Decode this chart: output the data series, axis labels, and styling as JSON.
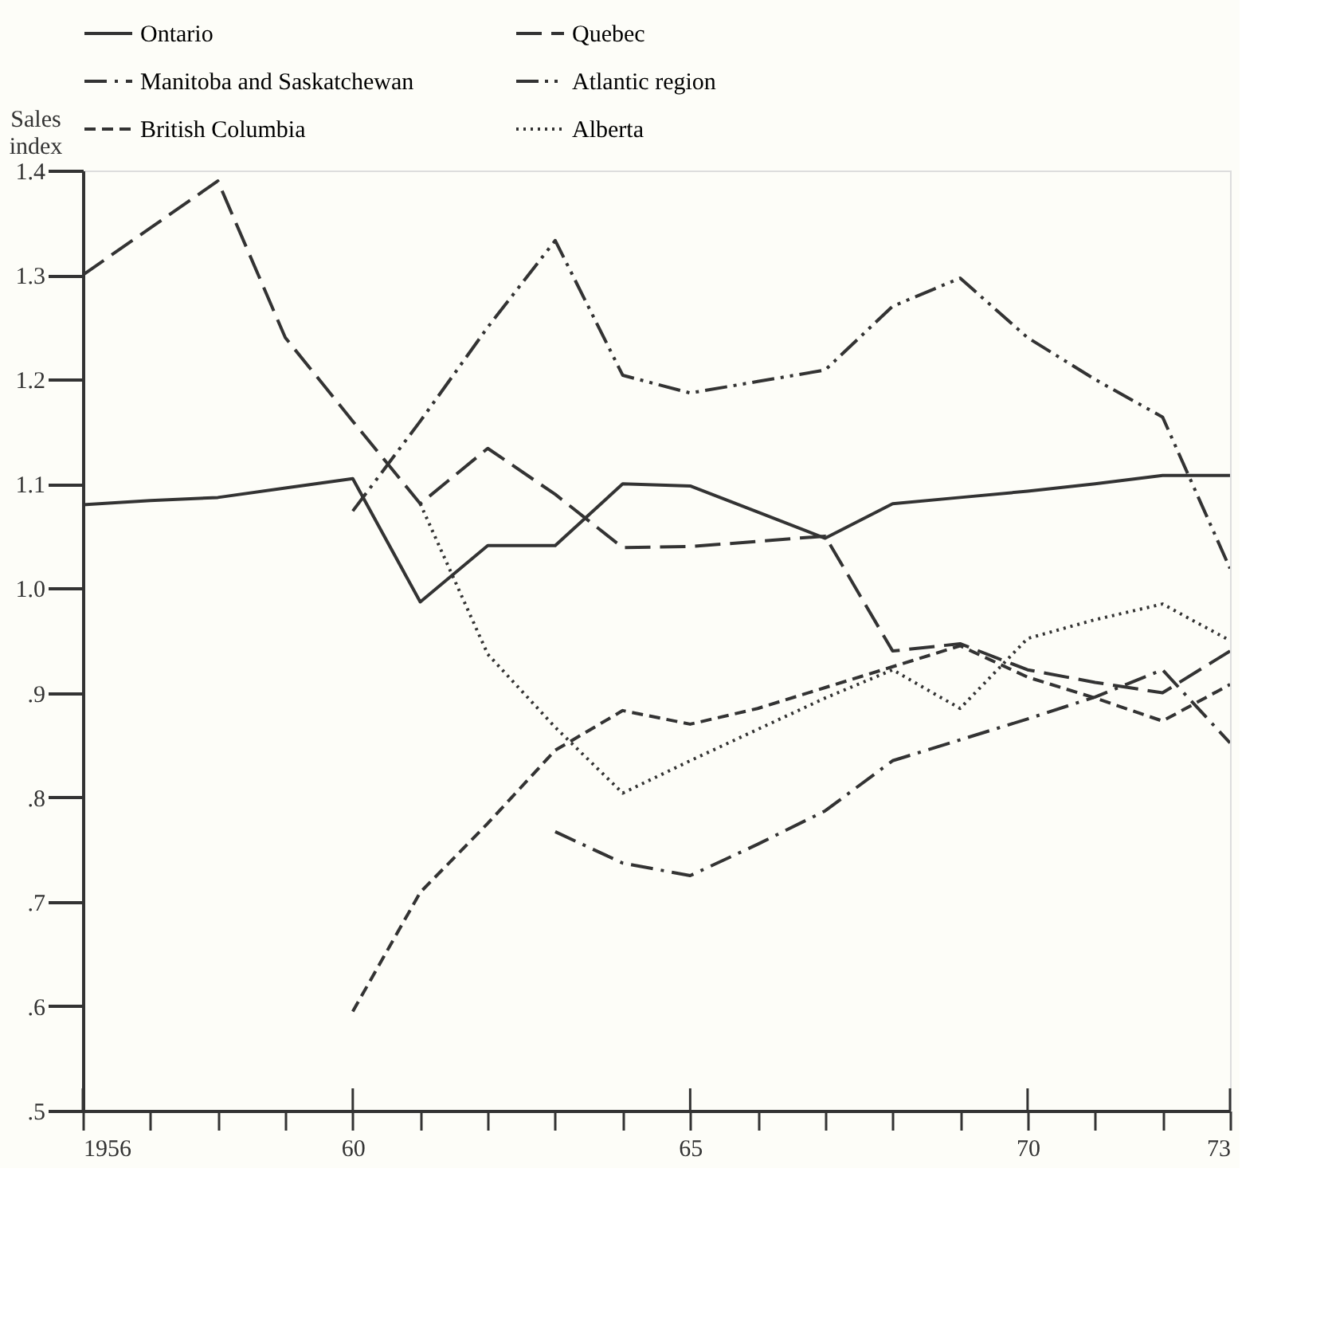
{
  "chart_data": {
    "type": "line",
    "ylabel": "Sales index",
    "x": [
      1956,
      1957,
      1958,
      1959,
      1960,
      1961,
      1962,
      1963,
      1964,
      1965,
      1966,
      1967,
      1968,
      1969,
      1970,
      1971,
      1972,
      1973
    ],
    "series": [
      {
        "name": "Ontario",
        "color": "#333333",
        "line_style": "solid",
        "values": [
          1.08,
          1.084,
          1.087,
          1.096,
          1.105,
          0.987,
          1.041,
          1.041,
          1.1,
          1.098,
          1.073,
          1.048,
          1.081,
          1.087,
          1.093,
          1.1,
          1.108,
          1.108
        ]
      },
      {
        "name": "Quebec",
        "color": "#333333",
        "line_style": "longdash",
        "values": [
          1.3,
          1.345,
          1.39,
          1.24,
          1.16,
          1.081,
          1.134,
          1.09,
          1.039,
          1.04,
          1.045,
          1.05,
          0.94,
          0.947,
          0.922,
          0.91,
          0.9,
          0.94
        ]
      },
      {
        "name": "Manitoba and Saskatchewan",
        "color": "#333333",
        "line_style": "dashdot",
        "values": [
          null,
          null,
          null,
          null,
          null,
          null,
          null,
          0.767,
          0.737,
          0.725,
          0.755,
          0.787,
          0.835,
          0.855,
          0.875,
          0.896,
          0.922,
          0.852
        ]
      },
      {
        "name": "Atlantic region",
        "color": "#333333",
        "line_style": "dashdotdot",
        "values": [
          null,
          null,
          null,
          null,
          1.074,
          1.16,
          1.25,
          1.333,
          1.204,
          1.187,
          1.198,
          1.209,
          1.27,
          1.297,
          1.24,
          1.2,
          1.164,
          1.019
        ]
      },
      {
        "name": "British Columbia",
        "color": "#333333",
        "line_style": "dashed",
        "values": [
          null,
          null,
          null,
          null,
          0.595,
          0.709,
          0.775,
          0.845,
          0.883,
          0.87,
          0.885,
          0.905,
          0.925,
          0.945,
          0.915,
          0.895,
          0.873,
          0.908
        ]
      },
      {
        "name": "Alberta",
        "color": "#333333",
        "line_style": "dotted",
        "values": [
          null,
          null,
          null,
          null,
          null,
          1.081,
          0.937,
          0.867,
          0.804,
          0.835,
          0.865,
          0.895,
          0.922,
          0.885,
          0.952,
          0.97,
          0.985,
          0.95
        ]
      }
    ],
    "xlim": [
      1956,
      1973
    ],
    "ylim": [
      0.5,
      1.4
    ],
    "xticks": [
      {
        "value": 1956,
        "label": "1956"
      },
      {
        "value": 1957,
        "label": null
      },
      {
        "value": 1958,
        "label": null
      },
      {
        "value": 1959,
        "label": null
      },
      {
        "value": 1960,
        "label": "60"
      },
      {
        "value": 1961,
        "label": null
      },
      {
        "value": 1962,
        "label": null
      },
      {
        "value": 1963,
        "label": null
      },
      {
        "value": 1964,
        "label": null
      },
      {
        "value": 1965,
        "label": "65"
      },
      {
        "value": 1966,
        "label": null
      },
      {
        "value": 1967,
        "label": null
      },
      {
        "value": 1968,
        "label": null
      },
      {
        "value": 1969,
        "label": null
      },
      {
        "value": 1970,
        "label": "70"
      },
      {
        "value": 1971,
        "label": null
      },
      {
        "value": 1972,
        "label": null
      },
      {
        "value": 1973,
        "label": "73"
      }
    ],
    "yticks": [
      {
        "value": 0.5,
        "label": ".5"
      },
      {
        "value": 0.6,
        "label": ".6"
      },
      {
        "value": 0.7,
        "label": ".7"
      },
      {
        "value": 0.8,
        "label": ".8"
      },
      {
        "value": 0.9,
        "label": ".9"
      },
      {
        "value": 1.0,
        "label": "1.0"
      },
      {
        "value": 1.1,
        "label": "1.1"
      },
      {
        "value": 1.2,
        "label": "1.2"
      },
      {
        "value": 1.3,
        "label": "1.3"
      },
      {
        "value": 1.4,
        "label": "1.4"
      }
    ],
    "grid": false,
    "legend": "top"
  }
}
